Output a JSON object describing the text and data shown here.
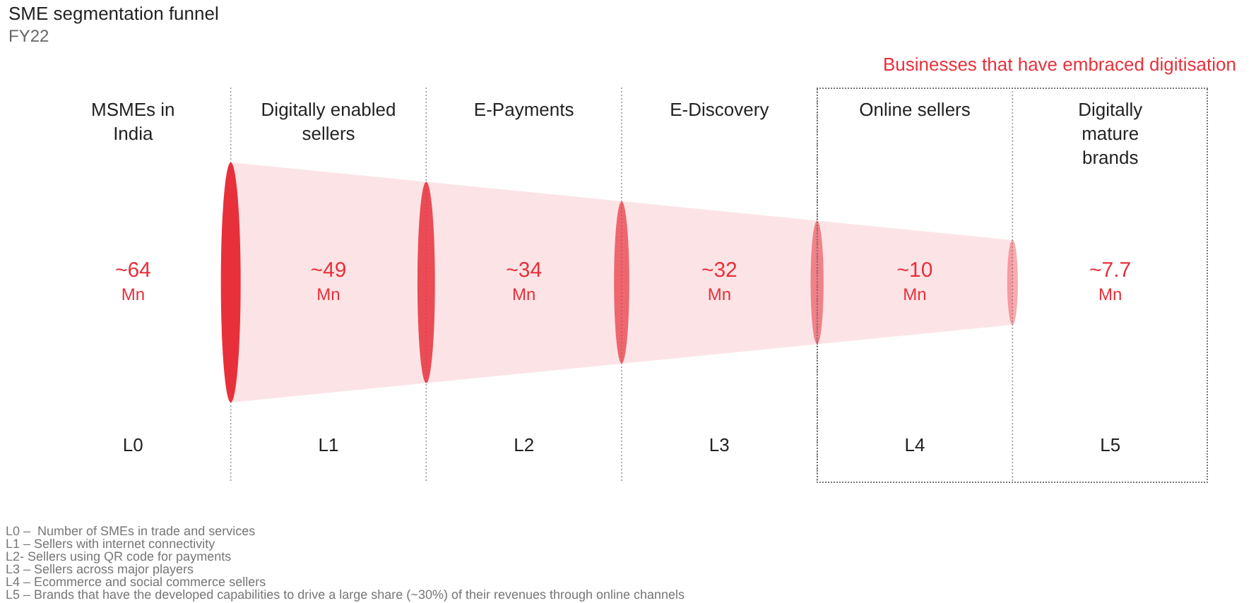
{
  "chart_data": {
    "type": "other",
    "title": "SME segmentation funnel",
    "subtitle": "FY22",
    "categories": [
      "MSMEs in India",
      "Digitally enabled sellers",
      "E-Payments",
      "E-Discovery",
      "Online sellers",
      "Digitally mature brands"
    ],
    "values": [
      64,
      49,
      34,
      32,
      10,
      7.7
    ],
    "value_labels": [
      "~64 Mn",
      "~49 Mn",
      "~34 Mn",
      "~32 Mn",
      "~10 Mn",
      "~7.7 Mn"
    ],
    "color": "#e8303a",
    "annotations": [
      "Businesses that have embraced digitisation",
      {
        "text": "L0",
        "x": "MSMEs in India"
      },
      {
        "text": "L1",
        "x": "Digitally enabled sellers"
      },
      {
        "text": "L2",
        "x": "E-Payments"
      },
      {
        "text": "L3",
        "x": "E-Discovery"
      },
      {
        "text": "L4",
        "x": "Online sellers"
      },
      {
        "text": "L5",
        "x": "Digitally mature brands"
      },
      "L0 –  Number of SMEs in trade and services",
      "L1 – Sellers with internet connectivity",
      "L2- Sellers using QR code for payments",
      "L3 – Sellers across major players",
      "L4 – Ecommerce and social commerce sellers",
      "L5 – Brands that have the developed capabilities to drive a large share (~30%) of their revenues through online channels"
    ]
  }
}
